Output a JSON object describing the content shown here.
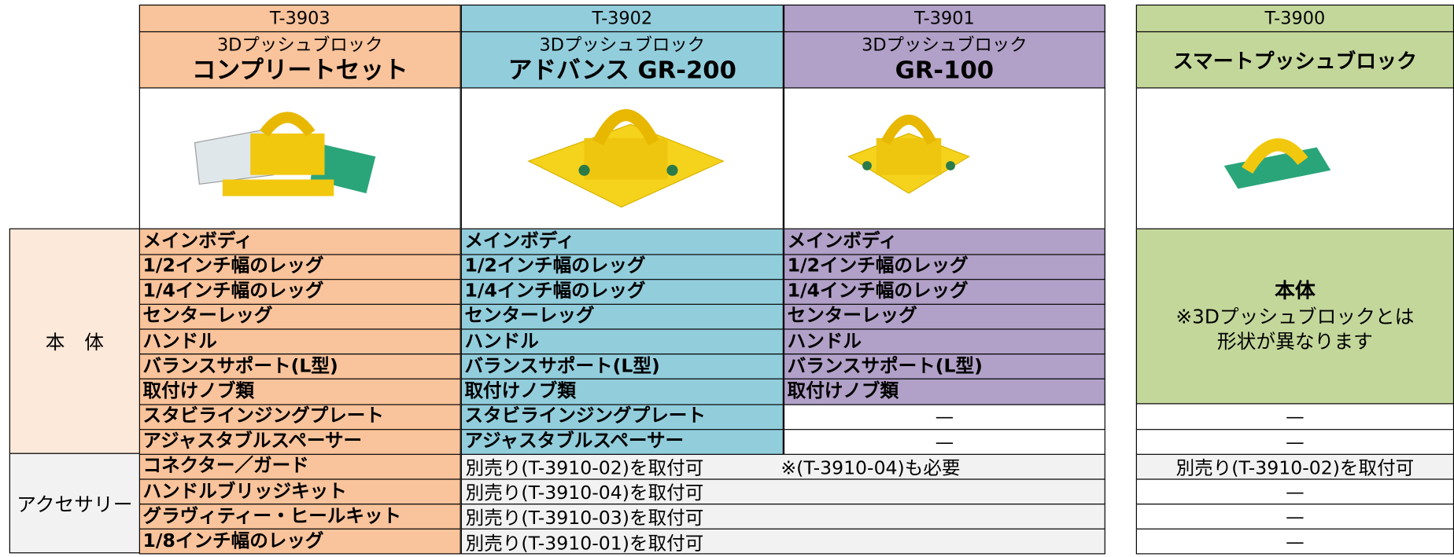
{
  "products": [
    {
      "code": "T-3903",
      "subtitle": "3Dプッシュブロック",
      "name": "コンプリートセット"
    },
    {
      "code": "T-3902",
      "subtitle": "3Dプッシュブロック",
      "name": "アドバンス GR-200"
    },
    {
      "code": "T-3901",
      "subtitle": "3Dプッシュブロック",
      "name": "GR-100"
    },
    {
      "code": "T-3900",
      "name": "スマートプッシュブロック"
    }
  ],
  "body": {
    "label": "本　体",
    "columns": [
      [
        "メインボディ",
        "1/2インチ幅のレッグ",
        "1/4インチ幅のレッグ",
        "センターレッグ",
        "ハンドル",
        "バランスサポート(L型)",
        "取付けノブ類",
        "スタビラインジングプレート",
        "アジャスタブルスペーサー"
      ],
      [
        "メインボディ",
        "1/2インチ幅のレッグ",
        "1/4インチ幅のレッグ",
        "センターレッグ",
        "ハンドル",
        "バランスサポート(L型)",
        "取付けノブ類",
        "スタビラインジングプレート",
        "アジャスタブルスペーサー"
      ],
      [
        "メインボディ",
        "1/2インチ幅のレッグ",
        "1/4インチ幅のレッグ",
        "センターレッグ",
        "ハンドル",
        "バランスサポート(L型)",
        "取付けノブ類",
        "—",
        "—"
      ]
    ],
    "t3900_main": "本体",
    "t3900_note": [
      "※3Dプッシュブロックとは",
      "形状が異なります"
    ],
    "t3900_rest": [
      "—",
      "—"
    ]
  },
  "accessories": {
    "label": "アクセサリー",
    "items": [
      "コネクター／ガード",
      "ハンドルブリッジキット",
      "グラヴィティー・ヒールキット",
      "1/8インチ幅のレッグ"
    ],
    "shared": [
      "別売り(T-3910-02)を取付可",
      "別売り(T-3910-04)を取付可",
      "別売り(T-3910-03)を取付可",
      "別売り(T-3910-01)を取付可"
    ],
    "note": "※(T-3910-04)も必要",
    "t3900": [
      "別売り(T-3910-02)を取付可",
      "—",
      "—",
      "—"
    ]
  }
}
